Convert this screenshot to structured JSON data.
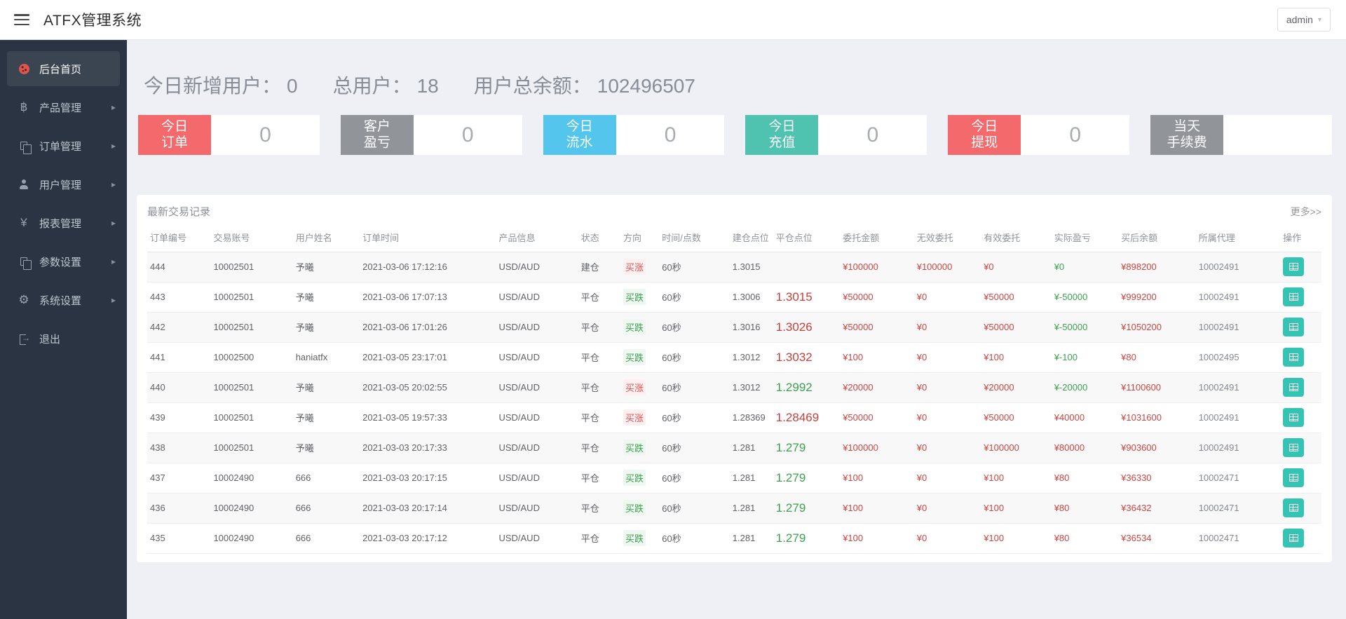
{
  "header": {
    "title": "ATFX管理系统",
    "user_menu": "admin"
  },
  "sidebar": {
    "items": [
      {
        "key": "home",
        "label": "后台首页",
        "icon": "ladybug-icon",
        "active": true,
        "arrow": false
      },
      {
        "key": "product",
        "label": "产品管理",
        "icon": "bitcoin-icon",
        "active": false,
        "arrow": true
      },
      {
        "key": "order",
        "label": "订单管理",
        "icon": "documents-icon",
        "active": false,
        "arrow": true
      },
      {
        "key": "user",
        "label": "用户管理",
        "icon": "user-icon",
        "active": false,
        "arrow": true
      },
      {
        "key": "report",
        "label": "报表管理",
        "icon": "yen-icon",
        "active": false,
        "arrow": true
      },
      {
        "key": "params",
        "label": "参数设置",
        "icon": "documents-icon",
        "active": false,
        "arrow": true
      },
      {
        "key": "system",
        "label": "系统设置",
        "icon": "gears-icon",
        "active": false,
        "arrow": true
      },
      {
        "key": "logout",
        "label": "退出",
        "icon": "logout-icon",
        "active": false,
        "arrow": false
      }
    ]
  },
  "stats": [
    {
      "label": "今日新增用户：",
      "value": "0"
    },
    {
      "label": "总用户：",
      "value": "18"
    },
    {
      "label": "用户总余额：",
      "value": "102496507"
    }
  ],
  "cards": [
    {
      "key": "today-orders",
      "label": "今日订单",
      "label_lines": [
        "今日",
        "订单"
      ],
      "color": "#f4696b",
      "value": "0"
    },
    {
      "key": "customer-pnl",
      "label": "客户盈亏",
      "label_lines": [
        "客户",
        "盈亏"
      ],
      "color": "#919499",
      "value": "0"
    },
    {
      "key": "today-flow",
      "label": "今日流水",
      "label_lines": [
        "今日",
        "流水"
      ],
      "color": "#54c6ee",
      "value": "0"
    },
    {
      "key": "today-deposit",
      "label": "今日充值",
      "label_lines": [
        "今日",
        "充值"
      ],
      "color": "#4fc2b0",
      "value": "0"
    },
    {
      "key": "today-withdraw",
      "label": "今日提现",
      "label_lines": [
        "今日",
        "提现"
      ],
      "color": "#f4696b",
      "value": "0"
    },
    {
      "key": "today-fee",
      "label": "当天手续费",
      "label_lines": [
        "当天",
        "手续费"
      ],
      "color": "#919499",
      "value": ""
    }
  ],
  "panel": {
    "title": "最新交易记录",
    "more_link": "更多>>",
    "columns": [
      "订单编号",
      "交易账号",
      "用户姓名",
      "订单时间",
      "产品信息",
      "状态",
      "方向",
      "时间/点数",
      "建仓点位",
      "平仓点位",
      "委托金额",
      "无效委托",
      "有效委托",
      "实际盈亏",
      "买后余额",
      "所属代理",
      "操作"
    ],
    "rows": [
      {
        "id": "444",
        "account": "10002501",
        "name": "予曦",
        "time": "2021-03-06 17:12:16",
        "product": "USD/AUD",
        "status": "建仓",
        "direction": {
          "text": "买涨",
          "tone": "red"
        },
        "duration": "60秒",
        "open": "1.3015",
        "close": {
          "text": "",
          "tone": "red"
        },
        "amount": "¥100000",
        "invalid": "¥100000",
        "valid": "¥0",
        "profit": {
          "text": "¥0",
          "tone": "green"
        },
        "balance": "¥898200",
        "agent": "10002491"
      },
      {
        "id": "443",
        "account": "10002501",
        "name": "予曦",
        "time": "2021-03-06 17:07:13",
        "product": "USD/AUD",
        "status": "平仓",
        "direction": {
          "text": "买跌",
          "tone": "green"
        },
        "duration": "60秒",
        "open": "1.3006",
        "close": {
          "text": "1.3015",
          "tone": "red"
        },
        "amount": "¥50000",
        "invalid": "¥0",
        "valid": "¥50000",
        "profit": {
          "text": "¥-50000",
          "tone": "green"
        },
        "balance": "¥999200",
        "agent": "10002491"
      },
      {
        "id": "442",
        "account": "10002501",
        "name": "予曦",
        "time": "2021-03-06 17:01:26",
        "product": "USD/AUD",
        "status": "平仓",
        "direction": {
          "text": "买跌",
          "tone": "green"
        },
        "duration": "60秒",
        "open": "1.3016",
        "close": {
          "text": "1.3026",
          "tone": "red"
        },
        "amount": "¥50000",
        "invalid": "¥0",
        "valid": "¥50000",
        "profit": {
          "text": "¥-50000",
          "tone": "green"
        },
        "balance": "¥1050200",
        "agent": "10002491"
      },
      {
        "id": "441",
        "account": "10002500",
        "name": "haniatfx",
        "time": "2021-03-05 23:17:01",
        "product": "USD/AUD",
        "status": "平仓",
        "direction": {
          "text": "买跌",
          "tone": "green"
        },
        "duration": "60秒",
        "open": "1.3012",
        "close": {
          "text": "1.3032",
          "tone": "red"
        },
        "amount": "¥100",
        "invalid": "¥0",
        "valid": "¥100",
        "profit": {
          "text": "¥-100",
          "tone": "green"
        },
        "balance": "¥80",
        "agent": "10002495"
      },
      {
        "id": "440",
        "account": "10002501",
        "name": "予曦",
        "time": "2021-03-05 20:02:55",
        "product": "USD/AUD",
        "status": "平仓",
        "direction": {
          "text": "买涨",
          "tone": "red"
        },
        "duration": "60秒",
        "open": "1.3012",
        "close": {
          "text": "1.2992",
          "tone": "green"
        },
        "amount": "¥20000",
        "invalid": "¥0",
        "valid": "¥20000",
        "profit": {
          "text": "¥-20000",
          "tone": "green"
        },
        "balance": "¥1100600",
        "agent": "10002491"
      },
      {
        "id": "439",
        "account": "10002501",
        "name": "予曦",
        "time": "2021-03-05 19:57:33",
        "product": "USD/AUD",
        "status": "平仓",
        "direction": {
          "text": "买涨",
          "tone": "red"
        },
        "duration": "60秒",
        "open": "1.28369",
        "close": {
          "text": "1.28469",
          "tone": "red"
        },
        "amount": "¥50000",
        "invalid": "¥0",
        "valid": "¥50000",
        "profit": {
          "text": "¥40000",
          "tone": "red"
        },
        "balance": "¥1031600",
        "agent": "10002491"
      },
      {
        "id": "438",
        "account": "10002501",
        "name": "予曦",
        "time": "2021-03-03 20:17:33",
        "product": "USD/AUD",
        "status": "平仓",
        "direction": {
          "text": "买跌",
          "tone": "green"
        },
        "duration": "60秒",
        "open": "1.281",
        "close": {
          "text": "1.279",
          "tone": "green"
        },
        "amount": "¥100000",
        "invalid": "¥0",
        "valid": "¥100000",
        "profit": {
          "text": "¥80000",
          "tone": "red"
        },
        "balance": "¥903600",
        "agent": "10002491"
      },
      {
        "id": "437",
        "account": "10002490",
        "name": "666",
        "time": "2021-03-03 20:17:15",
        "product": "USD/AUD",
        "status": "平仓",
        "direction": {
          "text": "买跌",
          "tone": "green"
        },
        "duration": "60秒",
        "open": "1.281",
        "close": {
          "text": "1.279",
          "tone": "green"
        },
        "amount": "¥100",
        "invalid": "¥0",
        "valid": "¥100",
        "profit": {
          "text": "¥80",
          "tone": "red"
        },
        "balance": "¥36330",
        "agent": "10002471"
      },
      {
        "id": "436",
        "account": "10002490",
        "name": "666",
        "time": "2021-03-03 20:17:14",
        "product": "USD/AUD",
        "status": "平仓",
        "direction": {
          "text": "买跌",
          "tone": "green"
        },
        "duration": "60秒",
        "open": "1.281",
        "close": {
          "text": "1.279",
          "tone": "green"
        },
        "amount": "¥100",
        "invalid": "¥0",
        "valid": "¥100",
        "profit": {
          "text": "¥80",
          "tone": "red"
        },
        "balance": "¥36432",
        "agent": "10002471"
      },
      {
        "id": "435",
        "account": "10002490",
        "name": "666",
        "time": "2021-03-03 20:17:12",
        "product": "USD/AUD",
        "status": "平仓",
        "direction": {
          "text": "买跌",
          "tone": "green"
        },
        "duration": "60秒",
        "open": "1.281",
        "close": {
          "text": "1.279",
          "tone": "green"
        },
        "amount": "¥100",
        "invalid": "¥0",
        "valid": "¥100",
        "profit": {
          "text": "¥80",
          "tone": "red"
        },
        "balance": "¥36534",
        "agent": "10002471"
      }
    ]
  },
  "theme": {
    "accent_red": "#f4696b",
    "accent_gray": "#919499",
    "accent_blue": "#54c6ee",
    "accent_teal": "#4fc2b0",
    "action_button_teal": "#35c3b4",
    "text_red": "#cc4540",
    "text_green": "#3da14f",
    "sidebar_bg": "#2b3442",
    "main_bg": "#eef0f5"
  }
}
